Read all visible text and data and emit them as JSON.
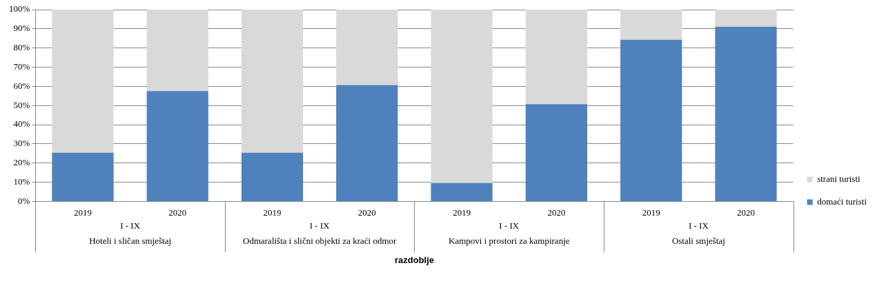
{
  "chart_data": {
    "type": "bar",
    "stacked": true,
    "xlabel": "razdoblje",
    "categories": [
      "2019",
      "2020",
      "2019",
      "2020",
      "2019",
      "2020",
      "2019",
      "2020"
    ],
    "series": [
      {
        "name": "domaći turisti",
        "color": "#4f81bd",
        "values": [
          25.4,
          57.5,
          25.4,
          60.7,
          9.6,
          50.7,
          84.3,
          91.1
        ]
      },
      {
        "name": "strani turisti",
        "color": "#d9d9d9",
        "values": [
          74.6,
          42.5,
          74.6,
          39.3,
          90.4,
          49.3,
          15.7,
          8.9
        ]
      }
    ],
    "ylim": [
      0,
      100
    ],
    "yticks": [
      {
        "value": 0,
        "label": "0%"
      },
      {
        "value": 10,
        "label": "10%"
      },
      {
        "value": 20,
        "label": "20%"
      },
      {
        "value": 30,
        "label": "30%"
      },
      {
        "value": 40,
        "label": "40%"
      },
      {
        "value": 50,
        "label": "50%"
      },
      {
        "value": 60,
        "label": "60%"
      },
      {
        "value": 70,
        "label": "70%"
      },
      {
        "value": 80,
        "label": "80%"
      },
      {
        "value": 90,
        "label": "90%"
      },
      {
        "value": 100,
        "label": "100%"
      }
    ],
    "grid": "y",
    "legend": "right",
    "annotations": [
      "I - IX",
      "Hoteli i sličan smještaj",
      "I - IX",
      "Odmarališta i slični objekti za kraći odmor",
      "I - IX",
      "Kampovi i prostori za kampiranje",
      "I - IX",
      "Ostali smještaj"
    ]
  }
}
